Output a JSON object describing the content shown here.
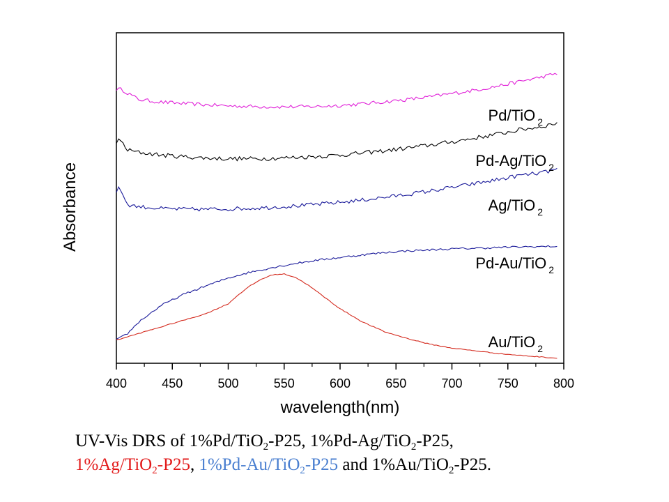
{
  "chart_data": {
    "type": "line",
    "xlabel": "wavelength(nm)",
    "ylabel": "Absorbance",
    "xlim": [
      400,
      800
    ],
    "xticks": [
      "400",
      "450",
      "500",
      "550",
      "600",
      "650",
      "700",
      "750",
      "800"
    ],
    "ylim": [
      0,
      100
    ],
    "y_tick_labels": false,
    "grid": false,
    "legend": "inline labels at right end of each curve",
    "series": [
      {
        "name": "Pd/TiO2",
        "label_main": "Pd/TiO",
        "label_sub": "2",
        "color": "#e020d8",
        "noise": 0.55,
        "x": [
          400,
          405,
          420,
          440,
          460,
          480,
          500,
          520,
          540,
          560,
          580,
          600,
          620,
          640,
          660,
          680,
          700,
          720,
          740,
          760,
          780,
          795
        ],
        "values": [
          83.0,
          82.8,
          79.8,
          79.0,
          78.6,
          78.2,
          77.9,
          77.7,
          77.6,
          77.6,
          77.7,
          78.0,
          78.5,
          79.1,
          79.8,
          80.6,
          81.6,
          82.6,
          83.8,
          85.2,
          86.6,
          87.8
        ]
      },
      {
        "name": "Pd-Ag/TiO2",
        "label_main": "Pd-Ag/TiO",
        "label_sub": "2",
        "color": "#000000",
        "noise": 0.65,
        "x": [
          400,
          403,
          410,
          420,
          440,
          460,
          480,
          500,
          520,
          540,
          560,
          580,
          600,
          620,
          640,
          660,
          680,
          700,
          720,
          740,
          760,
          780,
          795
        ],
        "values": [
          66.5,
          67.8,
          64.5,
          63.8,
          63.0,
          62.5,
          62.1,
          61.9,
          61.9,
          62.0,
          62.3,
          62.6,
          63.0,
          63.6,
          64.3,
          65.1,
          66.0,
          67.0,
          68.1,
          69.3,
          70.6,
          71.6,
          72.8
        ]
      },
      {
        "name": "Ag/TiO2",
        "label_main": "Ag/TiO",
        "label_sub": "2",
        "color": "#1a1a9a",
        "noise": 0.6,
        "x": [
          400,
          403,
          410,
          420,
          440,
          460,
          480,
          500,
          520,
          540,
          560,
          580,
          600,
          620,
          640,
          660,
          680,
          700,
          720,
          740,
          760,
          780,
          795
        ],
        "values": [
          52.0,
          53.2,
          48.0,
          47.4,
          46.8,
          46.6,
          46.6,
          46.7,
          46.9,
          47.2,
          47.6,
          48.1,
          48.7,
          49.4,
          50.2,
          51.1,
          52.1,
          53.2,
          54.3,
          55.5,
          56.8,
          57.6,
          58.8
        ]
      },
      {
        "name": "Pd-Au/TiO2",
        "label_main": "Pd-Au/TiO",
        "label_sub": "2",
        "color": "#1a1a9a",
        "noise": 0.3,
        "x": [
          400,
          410,
          420,
          440,
          460,
          480,
          500,
          520,
          540,
          560,
          580,
          600,
          620,
          640,
          660,
          680,
          700,
          720,
          740,
          760,
          780,
          795
        ],
        "values": [
          7.0,
          9.0,
          12.5,
          17.5,
          20.8,
          23.4,
          25.8,
          27.6,
          29.0,
          30.2,
          31.2,
          32.0,
          32.8,
          33.5,
          34.0,
          34.3,
          34.6,
          34.8,
          35.0,
          35.2,
          35.3,
          35.4
        ]
      },
      {
        "name": "Au/TiO2",
        "label_main": "Au/TiO",
        "label_sub": "2",
        "color": "#d42a1e",
        "noise": 0.12,
        "x": [
          400,
          410,
          420,
          440,
          460,
          480,
          500,
          510,
          520,
          530,
          540,
          550,
          560,
          570,
          580,
          600,
          620,
          640,
          660,
          680,
          700,
          720,
          740,
          760,
          780,
          795
        ],
        "values": [
          7.0,
          8.0,
          9.0,
          11.0,
          13.0,
          15.0,
          18.0,
          21.0,
          23.5,
          25.5,
          26.8,
          27.0,
          26.0,
          24.0,
          21.5,
          16.5,
          12.5,
          9.5,
          7.5,
          5.8,
          4.6,
          3.8,
          3.0,
          2.4,
          1.9,
          1.5
        ]
      }
    ]
  },
  "caption": {
    "l1_a": "UV-Vis DRS of 1%Pd/TiO",
    "l1_b": "2",
    "l1_c": "-P25,  1%Pd-Ag/TiO",
    "l1_d": "2",
    "l1_e": "-P25,",
    "l2_a": "1%Ag/TiO",
    "l2_b": "2",
    "l2_c": "-P25",
    "l2_d": ", ",
    "l2_e": "1%Pd-Au/TiO",
    "l2_f": "2",
    "l2_g": "-P25",
    "l2_h": " and 1%Au/TiO",
    "l2_i": "2",
    "l2_j": "-P25."
  }
}
